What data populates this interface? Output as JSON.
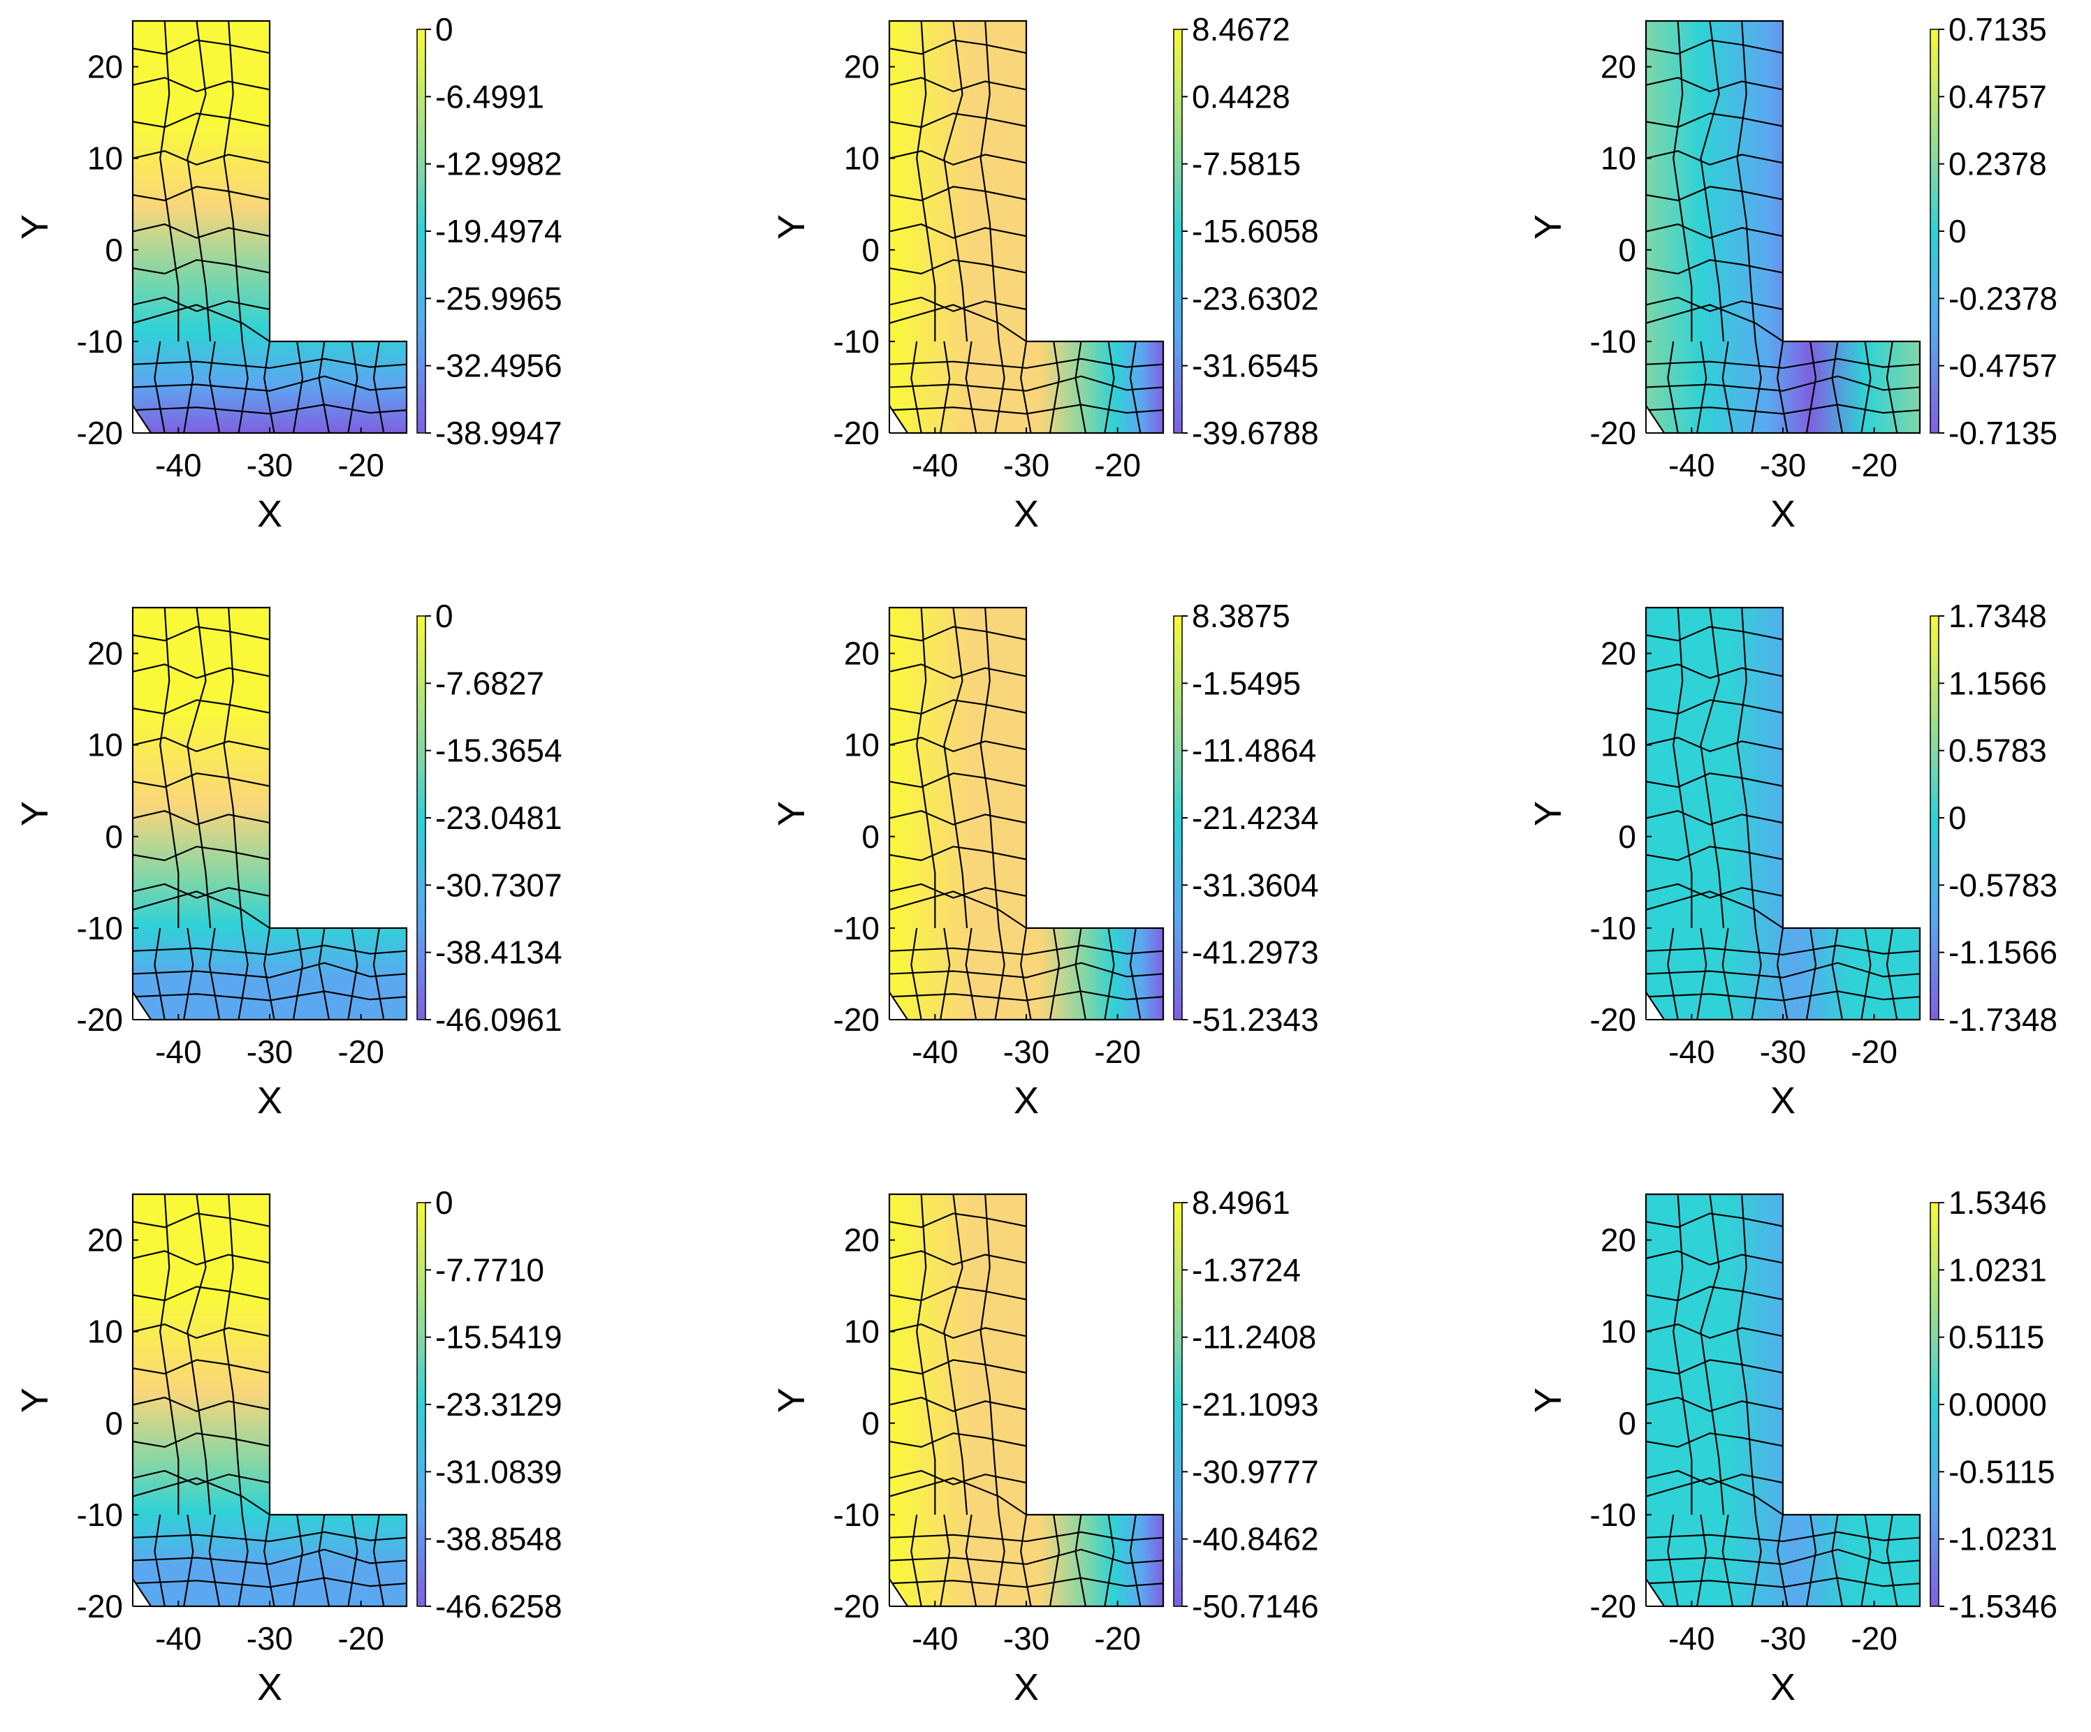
{
  "chart_data": [
    {
      "type": "heatmap",
      "row": 0,
      "col": 0,
      "field": "y",
      "xlabel": "X",
      "ylabel": "Y",
      "xlim": [
        -45,
        -15
      ],
      "ylim": [
        -20,
        25
      ],
      "xticks": [
        "-40",
        "-30",
        "-20"
      ],
      "yticks": [
        "-20",
        "-10",
        "0",
        "10",
        "20"
      ],
      "colorbar": {
        "ticks": [
          "0",
          "-6.4991",
          "-12.9982",
          "-19.4974",
          "-25.9965",
          "-32.4956",
          "-38.9947"
        ]
      }
    },
    {
      "type": "heatmap",
      "row": 0,
      "col": 1,
      "field": "x",
      "xlabel": "X",
      "ylabel": "Y",
      "xlim": [
        -45,
        -15
      ],
      "ylim": [
        -20,
        25
      ],
      "xticks": [
        "-40",
        "-30",
        "-20"
      ],
      "yticks": [
        "-20",
        "-10",
        "0",
        "10",
        "20"
      ],
      "colorbar": {
        "ticks": [
          "8.4672",
          "0.4428",
          "-7.5815",
          "-15.6058",
          "-23.6302",
          "-31.6545",
          "-39.6788"
        ]
      }
    },
    {
      "type": "heatmap",
      "row": 0,
      "col": 2,
      "field": "shear",
      "xlabel": "X",
      "ylabel": "Y",
      "xlim": [
        -45,
        -15
      ],
      "ylim": [
        -20,
        25
      ],
      "xticks": [
        "-40",
        "-30",
        "-20"
      ],
      "yticks": [
        "-20",
        "-10",
        "0",
        "10",
        "20"
      ],
      "colorbar": {
        "ticks": [
          "0.7135",
          "0.4757",
          "0.2378",
          "0",
          "-0.2378",
          "-0.4757",
          "-0.7135"
        ]
      }
    },
    {
      "type": "heatmap",
      "row": 1,
      "col": 0,
      "field": "y",
      "xlabel": "X",
      "ylabel": "Y",
      "xlim": [
        -45,
        -15
      ],
      "ylim": [
        -20,
        25
      ],
      "xticks": [
        "-40",
        "-30",
        "-20"
      ],
      "yticks": [
        "-20",
        "-10",
        "0",
        "10",
        "20"
      ],
      "colorbar": {
        "ticks": [
          "0",
          "-7.6827",
          "-15.3654",
          "-23.0481",
          "-30.7307",
          "-38.4134",
          "-46.0961"
        ]
      }
    },
    {
      "type": "heatmap",
      "row": 1,
      "col": 1,
      "field": "x",
      "xlabel": "X",
      "ylabel": "Y",
      "xlim": [
        -45,
        -15
      ],
      "ylim": [
        -20,
        25
      ],
      "xticks": [
        "-40",
        "-30",
        "-20"
      ],
      "yticks": [
        "-20",
        "-10",
        "0",
        "10",
        "20"
      ],
      "colorbar": {
        "ticks": [
          "8.3875",
          "-1.5495",
          "-11.4864",
          "-21.4234",
          "-31.3604",
          "-41.2973",
          "-51.2343"
        ]
      }
    },
    {
      "type": "heatmap",
      "row": 1,
      "col": 2,
      "field": "shear",
      "xlabel": "X",
      "ylabel": "Y",
      "xlim": [
        -45,
        -15
      ],
      "ylim": [
        -20,
        25
      ],
      "xticks": [
        "-40",
        "-30",
        "-20"
      ],
      "yticks": [
        "-20",
        "-10",
        "0",
        "10",
        "20"
      ],
      "colorbar": {
        "ticks": [
          "1.7348",
          "1.1566",
          "0.5783",
          "0",
          "-0.5783",
          "-1.1566",
          "-1.7348"
        ]
      }
    },
    {
      "type": "heatmap",
      "row": 2,
      "col": 0,
      "field": "y",
      "xlabel": "X",
      "ylabel": "Y",
      "xlim": [
        -45,
        -15
      ],
      "ylim": [
        -20,
        25
      ],
      "xticks": [
        "-40",
        "-30",
        "-20"
      ],
      "yticks": [
        "-20",
        "-10",
        "0",
        "10",
        "20"
      ],
      "colorbar": {
        "ticks": [
          "0",
          "-7.7710",
          "-15.5419",
          "-23.3129",
          "-31.0839",
          "-38.8548",
          "-46.6258"
        ]
      }
    },
    {
      "type": "heatmap",
      "row": 2,
      "col": 1,
      "field": "x",
      "xlabel": "X",
      "ylabel": "Y",
      "xlim": [
        -45,
        -15
      ],
      "ylim": [
        -20,
        25
      ],
      "xticks": [
        "-40",
        "-30",
        "-20"
      ],
      "yticks": [
        "-20",
        "-10",
        "0",
        "10",
        "20"
      ],
      "colorbar": {
        "ticks": [
          "8.4961",
          "-1.3724",
          "-11.2408",
          "-21.1093",
          "-30.9777",
          "-40.8462",
          "-50.7146"
        ]
      }
    },
    {
      "type": "heatmap",
      "row": 2,
      "col": 2,
      "field": "shear",
      "xlabel": "X",
      "ylabel": "Y",
      "xlim": [
        -45,
        -15
      ],
      "ylim": [
        -20,
        25
      ],
      "xticks": [
        "-40",
        "-30",
        "-20"
      ],
      "yticks": [
        "-20",
        "-10",
        "0",
        "10",
        "20"
      ],
      "colorbar": {
        "ticks": [
          "1.5346",
          "1.0231",
          "0.5115",
          "0.0000",
          "-0.5115",
          "-1.0231",
          "-1.5346"
        ]
      }
    }
  ],
  "colors": {
    "yellow": "#f9f93a",
    "orange": "#fad67a",
    "green": "#7fd6a8",
    "cyan": "#2fd2d6",
    "blue": "#5ba8f0",
    "purple": "#8060e0"
  }
}
